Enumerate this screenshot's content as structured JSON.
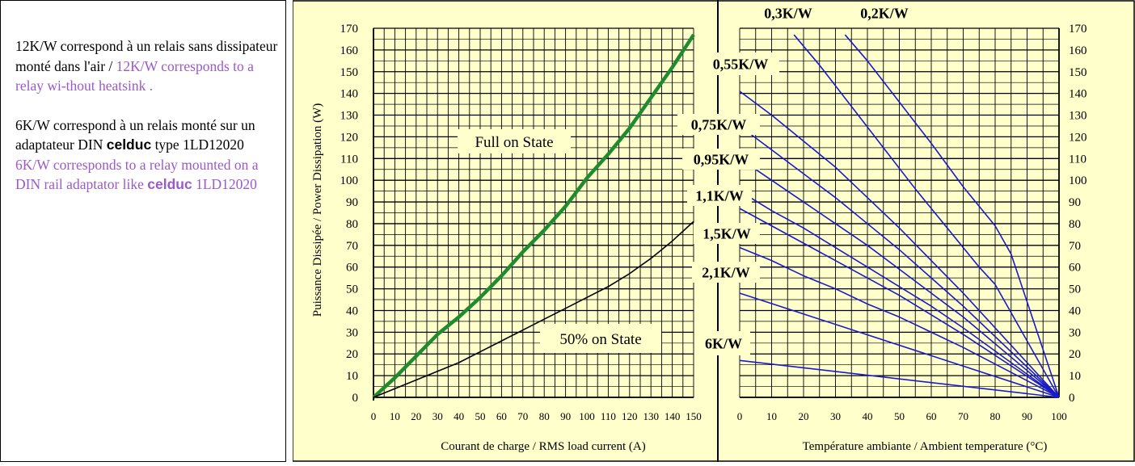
{
  "note": {
    "p1_fr": "12K/W correspond à un relais sans dissipateur monté dans l'air /",
    "p1_en": "12K/W corresponds to a relay wi-thout heatsink .",
    "p2_fr_a": "6K/W correspond à un relais monté sur un adaptateur DIN",
    "p2_brand": "celduc",
    "p2_fr_b": "type 1LD12020",
    "p2_en_a": "6K/W corresponds to a relay mounted on a DIN rail adaptator like",
    "p2_en_brand": "celduc",
    "p2_en_b": "1LD12020"
  },
  "colors": {
    "background": "#FFFFCC",
    "grid": "#000000",
    "full_on_line": "#1E8C2E",
    "half_on_line": "#000000",
    "thermal_lines": "#1A1AC8",
    "note_english_text": "#9B59C9"
  },
  "chart_data": [
    {
      "type": "line",
      "ylabel": "Puissance Dissipée / Power Dissipation (W)",
      "xlabel": "Courant de charge / RMS load current (A)",
      "xlim": [
        0,
        150
      ],
      "ylim": [
        0,
        170
      ],
      "x_ticks": [
        "0",
        "10",
        "20",
        "30",
        "40",
        "50",
        "60",
        "70",
        "80",
        "90",
        "100",
        "110",
        "120",
        "130",
        "140",
        "150"
      ],
      "y_ticks": [
        "0",
        "10",
        "20",
        "30",
        "40",
        "50",
        "60",
        "70",
        "80",
        "90",
        "100",
        "110",
        "120",
        "130",
        "140",
        "150",
        "160",
        "170"
      ],
      "grid": true,
      "series": [
        {
          "name": "Full on State",
          "x": [
            0,
            10,
            20,
            30,
            40,
            50,
            60,
            70,
            80,
            90,
            100,
            110,
            120,
            130,
            140,
            150
          ],
          "y": [
            0,
            9,
            19,
            29,
            37,
            46,
            56,
            67,
            77,
            88,
            101,
            112,
            124,
            138,
            152,
            167
          ]
        },
        {
          "name": "50% on State",
          "x": [
            0,
            10,
            20,
            30,
            40,
            50,
            60,
            70,
            80,
            90,
            100,
            110,
            120,
            130,
            140,
            150
          ],
          "y": [
            0,
            4,
            8,
            12,
            16,
            21,
            26,
            31,
            36,
            41,
            46,
            51,
            57,
            64,
            72,
            81
          ]
        }
      ],
      "annotations": [
        "Full on State",
        "50% on State"
      ]
    },
    {
      "type": "line",
      "xlabel": "Température ambiante / Ambient temperature (°C)",
      "xlim": [
        0,
        100
      ],
      "ylim": [
        0,
        170
      ],
      "x_ticks": [
        "0",
        "10",
        "20",
        "30",
        "40",
        "50",
        "60",
        "70",
        "80",
        "90",
        "100"
      ],
      "y_ticks": [
        "0",
        "10",
        "20",
        "30",
        "40",
        "50",
        "60",
        "70",
        "80",
        "90",
        "100",
        "110",
        "120",
        "130",
        "140",
        "150",
        "160",
        "170"
      ],
      "grid": true,
      "series": [
        {
          "name": "0,2K/W",
          "x": [
            33,
            40,
            50,
            60,
            70,
            80,
            85,
            100
          ],
          "y": [
            167,
            155,
            136,
            117,
            97,
            79,
            66,
            0
          ]
        },
        {
          "name": "0,3K/W",
          "x": [
            17,
            25,
            35,
            45,
            55,
            65,
            75,
            80,
            100
          ],
          "y": [
            167,
            153,
            134,
            115,
            96,
            78,
            60,
            52,
            0
          ]
        },
        {
          "name": "0,55K/W",
          "x": [
            0,
            10,
            20,
            30,
            40,
            50,
            60,
            70,
            100
          ],
          "y": [
            141,
            130,
            118,
            106,
            92,
            78,
            63,
            48,
            0
          ]
        },
        {
          "name": "0,75K/W",
          "x": [
            0,
            10,
            20,
            30,
            40,
            50,
            60,
            70,
            100
          ],
          "y": [
            125,
            114,
            103,
            92,
            80,
            68,
            55,
            42,
            0
          ]
        },
        {
          "name": "0,95K/W",
          "x": [
            0,
            10,
            20,
            30,
            40,
            50,
            60,
            70,
            100
          ],
          "y": [
            110,
            100,
            90,
            80,
            70,
            59,
            48,
            37,
            0
          ]
        },
        {
          "name": "1,1K/W",
          "x": [
            0,
            10,
            20,
            30,
            40,
            50,
            60,
            70,
            100
          ],
          "y": [
            95,
            86,
            78,
            69,
            60,
            51,
            42,
            32,
            0
          ]
        },
        {
          "name": "1,5K/W",
          "x": [
            0,
            10,
            20,
            30,
            40,
            50,
            60,
            70,
            100
          ],
          "y": [
            87,
            79,
            71,
            63,
            55,
            47,
            38,
            29,
            0
          ]
        },
        {
          "name": "2,1K/W",
          "x": [
            0,
            10,
            20,
            30,
            40,
            50,
            60,
            70,
            100
          ],
          "y": [
            69,
            63,
            56,
            50,
            43,
            37,
            30,
            23,
            0
          ]
        },
        {
          "name": "6K/W",
          "x": [
            0,
            100
          ],
          "y": [
            48,
            0
          ]
        },
        {
          "name": "12K/W",
          "x": [
            0,
            100
          ],
          "y": [
            17,
            0
          ]
        }
      ],
      "labels": [
        "0,3K/W",
        "0,2K/W",
        "0,55K/W",
        "0,75K/W",
        "0,95K/W",
        "1,1K/W",
        "1,5K/W",
        "2,1K/W",
        "6K/W"
      ]
    }
  ]
}
